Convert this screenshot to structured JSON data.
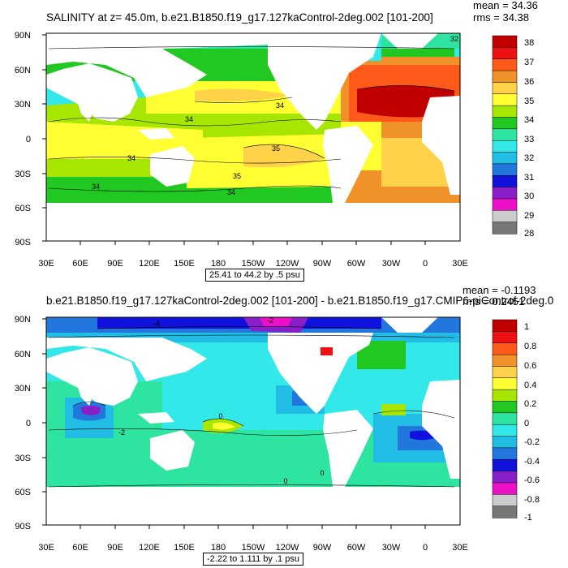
{
  "panels": [
    {
      "title": "SALINITY at z=  45.0m, b.e21.B1850.f19_g17.127kaControl-2deg.002 [101-200]",
      "stats": {
        "mean": "mean = 34.36",
        "rms": "rms = 34.38"
      },
      "range_label": "25.41 to 44.2 by .5 psu",
      "lat_ticks": [
        "90N",
        "60N",
        "30N",
        "0",
        "30S",
        "60S",
        "90S"
      ],
      "lon_ticks": [
        "30E",
        "60E",
        "90E",
        "120E",
        "150E",
        "180",
        "150W",
        "120W",
        "90W",
        "60W",
        "30W",
        "0",
        "30E"
      ],
      "colorbar": {
        "labels": [
          "38",
          "37",
          "36",
          "35",
          "34",
          "33",
          "32",
          "31",
          "30",
          "29",
          "28"
        ],
        "colors": [
          "#c00000",
          "#ee1111",
          "#ff5a1a",
          "#f0912a",
          "#ffd24a",
          "#ffff33",
          "#a6e600",
          "#22c822",
          "#2de4a0",
          "#33e8e8",
          "#22bde5",
          "#2277dd",
          "#1111dd",
          "#8a1ec8",
          "#ee10c8",
          "#cccccc",
          "#777777"
        ]
      },
      "contour_labels": [
        "32",
        "34",
        "34",
        "34",
        "35",
        "35",
        "34",
        "34"
      ]
    },
    {
      "title": "b.e21.B1850.f19_g17.127kaControl-2deg.002 [101-200] - b.e21.B1850.f19_g17.CMIP6-piControl-2deg.0",
      "stats": {
        "mean": "mean = -0.1193",
        "rms": "rms = 0.2451"
      },
      "range_label": "-2.22 to 1.111 by .1 psu",
      "lat_ticks": [
        "90N",
        "60N",
        "30N",
        "0",
        "30S",
        "60S",
        "90S"
      ],
      "lon_ticks": [
        "30E",
        "60E",
        "90E",
        "120E",
        "150E",
        "180",
        "150W",
        "120W",
        "90W",
        "60W",
        "30W",
        "0",
        "30E"
      ],
      "colorbar": {
        "labels": [
          "1",
          "0.8",
          "0.6",
          "0.4",
          "0.2",
          "0",
          "-0.2",
          "-0.4",
          "-0.6",
          "-0.8",
          "-1"
        ],
        "colors": [
          "#c00000",
          "#ee1111",
          "#ff5a1a",
          "#f0912a",
          "#ffd24a",
          "#ffff33",
          "#a6e600",
          "#22c822",
          "#2de4a0",
          "#33e8e8",
          "#22bde5",
          "#2277dd",
          "#1111dd",
          "#8a1ec8",
          "#ee10c8",
          "#cccccc",
          "#777777"
        ]
      },
      "contour_labels": [
        "-4",
        "-2",
        "0",
        "0",
        "0",
        "-2"
      ]
    }
  ]
}
